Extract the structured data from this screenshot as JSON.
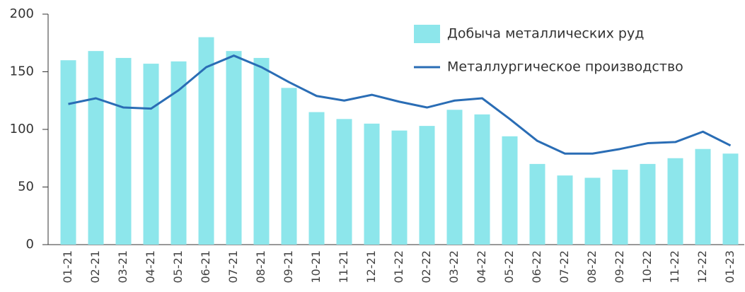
{
  "chart_data": {
    "type": "bar_line",
    "categories": [
      "01-21",
      "02-21",
      "03-21",
      "04-21",
      "05-21",
      "06-21",
      "07-21",
      "08-21",
      "09-21",
      "10-21",
      "11-21",
      "12-21",
      "01-22",
      "02-22",
      "03-22",
      "04-22",
      "05-22",
      "06-22",
      "07-22",
      "08-22",
      "09-22",
      "10-22",
      "11-22",
      "12-22",
      "01-23"
    ],
    "series": [
      {
        "name": "Добыча металлических руд",
        "kind": "bar",
        "color": "#8de6eb",
        "values": [
          160,
          168,
          162,
          157,
          159,
          180,
          168,
          162,
          136,
          115,
          109,
          105,
          99,
          103,
          117,
          113,
          94,
          70,
          60,
          58,
          65,
          70,
          75,
          83,
          79
        ]
      },
      {
        "name": "Металлургическое производство",
        "kind": "line",
        "color": "#2a6db5",
        "values": [
          122,
          127,
          119,
          118,
          134,
          154,
          164,
          154,
          141,
          129,
          125,
          130,
          124,
          119,
          125,
          127,
          109,
          90,
          79,
          79,
          83,
          88,
          89,
          98,
          86
        ]
      }
    ],
    "ylim": [
      0,
      200
    ],
    "yticks": [
      0,
      50,
      100,
      150,
      200
    ]
  }
}
